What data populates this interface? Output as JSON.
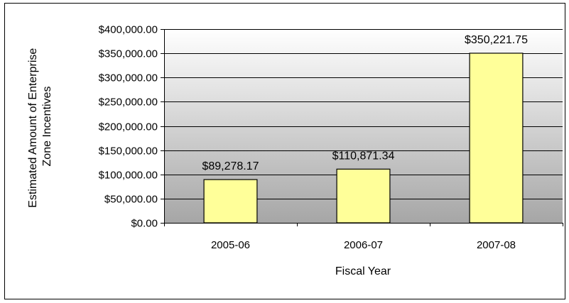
{
  "chart_data": {
    "type": "bar",
    "categories": [
      "2005-06",
      "2006-07",
      "2007-08"
    ],
    "values": [
      89278.17,
      110871.34,
      350221.75
    ],
    "data_labels": [
      "$89,278.17",
      "$110,871.34",
      "$350,221.75"
    ],
    "xlabel": "Fiscal Year",
    "ylabel_lines": [
      "Estimated Amount of Enterprise",
      "Zone Incentives"
    ],
    "ylim": [
      0,
      400000
    ],
    "y_ticks": [
      0,
      50000,
      100000,
      150000,
      200000,
      250000,
      300000,
      350000,
      400000
    ],
    "y_tick_labels": [
      "$0.00",
      "$50,000.00",
      "$100,000.00",
      "$150,000.00",
      "$200,000.00",
      "$250,000.00",
      "$300,000.00",
      "$350,000.00",
      "$400,000.00"
    ],
    "grid": true,
    "legend": "none",
    "colors": {
      "bar_fill": "#ffff99",
      "bar_stroke": "#000000",
      "plot_bg_top": "#ffffff",
      "plot_bg_bottom": "#a6a6a6",
      "gridline": "#000000"
    }
  }
}
